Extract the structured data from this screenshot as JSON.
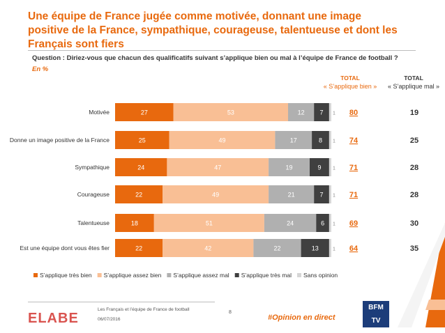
{
  "title": "Une équipe de France jugée comme motivée, donnant une image positive de la France, sympathique, courageuse, talentueuse et dont les Français sont fiers",
  "question": "Question : Diriez-vous que chacun des qualificatifs suivant s’applique bien ou mal à l’équipe de France de football ?",
  "unit": "En %",
  "totals_header": {
    "bien_title": "TOTAL",
    "bien_label": "« S’applique bien »",
    "mal_title": "TOTAL",
    "mal_label": "« S’applique mal »"
  },
  "chart_data": {
    "type": "bar",
    "orientation": "horizontal",
    "stacked": true,
    "categories": [
      "Motivée",
      "Donne un image positive de la France",
      "Sympathique",
      "Courageuse",
      "Talentueuse",
      "Est une équipe dont vous êtes fier"
    ],
    "series": [
      {
        "name": "S’applique très bien",
        "color": "#e8690e",
        "values": [
          27,
          25,
          24,
          22,
          18,
          22
        ]
      },
      {
        "name": "S’applique assez bien",
        "color": "#f9bf95",
        "values": [
          53,
          49,
          47,
          49,
          51,
          42
        ]
      },
      {
        "name": "S’applique assez mal",
        "color": "#b0b0b0",
        "values": [
          12,
          17,
          19,
          21,
          24,
          22
        ]
      },
      {
        "name": "S’applique très mal",
        "color": "#404040",
        "values": [
          7,
          8,
          9,
          7,
          6,
          13
        ]
      },
      {
        "name": "Sans opinion",
        "color": "#d6d6d6",
        "values": [
          1,
          1,
          1,
          1,
          1,
          1
        ]
      }
    ],
    "total_bien": [
      80,
      74,
      71,
      71,
      69,
      64
    ],
    "total_mal": [
      19,
      25,
      28,
      28,
      30,
      35
    ],
    "xlim": [
      0,
      100
    ],
    "legend_position": "bottom"
  },
  "footer": {
    "logo": "ELABE",
    "subtitle": "Les Français et l’équipe de France de football",
    "date": "06/07/2016",
    "page": "8",
    "hashtag": "#Opinion en direct",
    "bfm_line1": "BFM",
    "bfm_line2": "TV"
  }
}
